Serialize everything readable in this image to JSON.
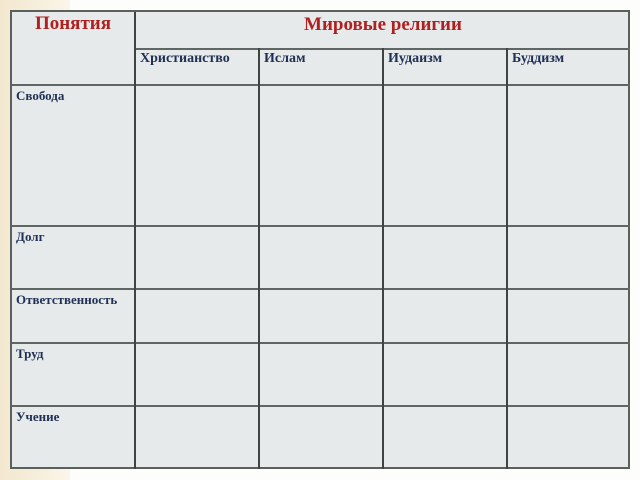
{
  "table": {
    "corner_header": "Понятия",
    "group_header": "Мировые религии",
    "columns": [
      "Христианство",
      "Ислам",
      "Иудаизм",
      "Буддизм"
    ],
    "rows": [
      "Свобода",
      "Долг",
      "Ответственность",
      "Труд",
      "Учение"
    ]
  },
  "colors": {
    "header_text": "#b02020",
    "body_text": "#1f2f55",
    "cell_fill": "#e6eaea"
  }
}
